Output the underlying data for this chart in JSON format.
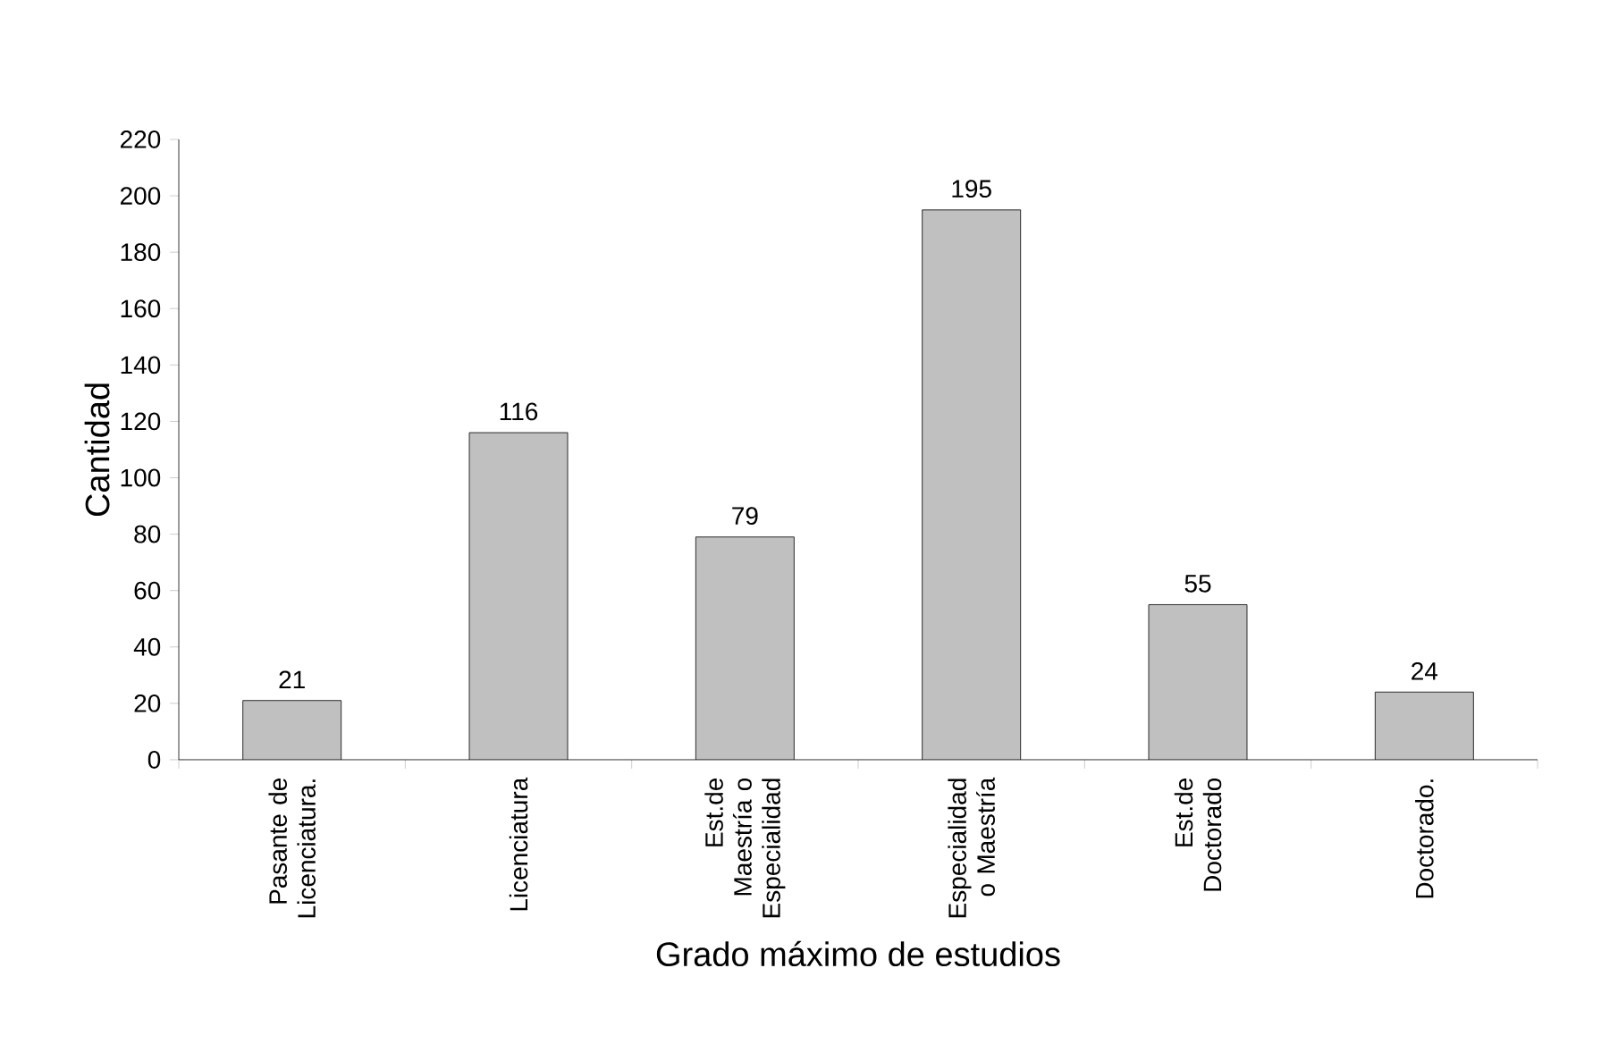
{
  "chart_data": {
    "type": "bar",
    "xlabel": "Grado máximo de estudios",
    "ylabel": "Cantidad",
    "categories": [
      "Pasante de Licenciatura.",
      "Licenciatura",
      "Est.de Maestría o Especialidad",
      "Especialidad o Maestría",
      "Est.de Doctorado",
      "Doctorado."
    ],
    "values": [
      21,
      116,
      79,
      195,
      55,
      24
    ],
    "color": "#c0c0c0",
    "ylim": [
      0,
      220
    ],
    "yticks": [
      0,
      20,
      40,
      60,
      80,
      100,
      120,
      140,
      160,
      180,
      200,
      220
    ],
    "data_labels": true
  }
}
